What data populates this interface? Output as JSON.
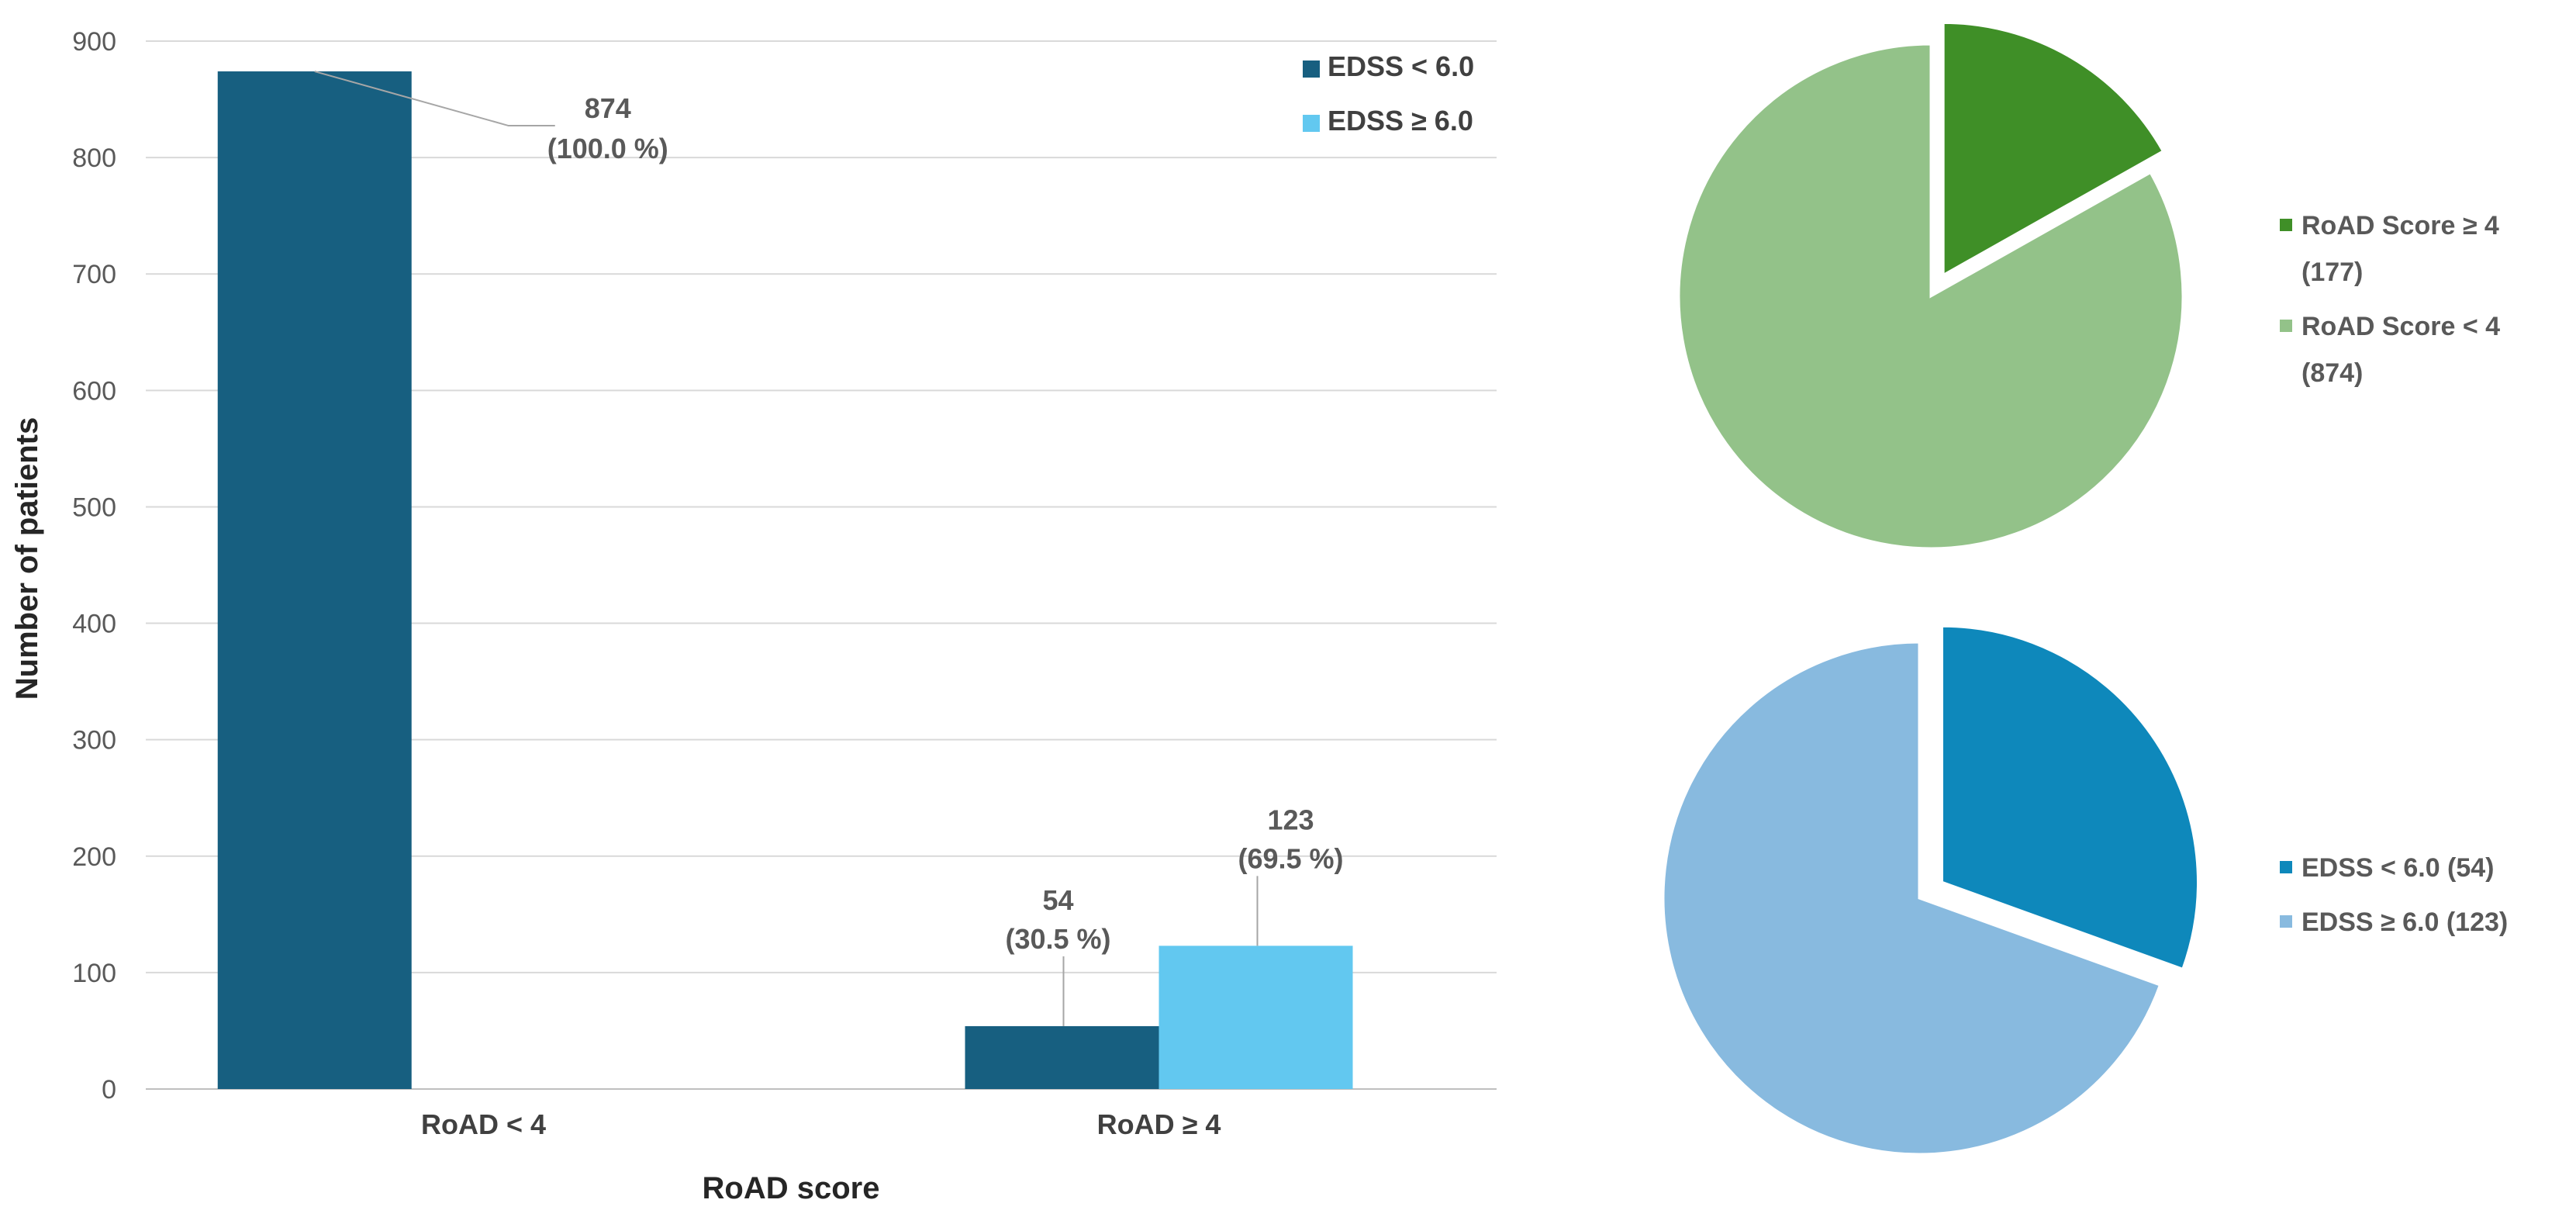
{
  "chart_data": [
    {
      "type": "bar",
      "title": "",
      "xlabel": "RoAD score",
      "ylabel": "Number of patients",
      "ylim": [
        0,
        900
      ],
      "yticks": [
        0,
        100,
        200,
        300,
        400,
        500,
        600,
        700,
        800,
        900
      ],
      "grid": true,
      "legend_position": "top-right",
      "categories": [
        "RoAD < 4",
        "RoAD ≥ 4"
      ],
      "series": [
        {
          "name": "EDSS < 6.0",
          "color": "#175f80",
          "values": [
            874,
            54
          ],
          "labels": [
            [
              "874",
              "(100.0 %)"
            ],
            [
              "54",
              "(30.5 %)"
            ]
          ]
        },
        {
          "name": "EDSS ≥ 6.0",
          "color": "#62c8f0",
          "values": [
            null,
            123
          ],
          "labels": [
            null,
            [
              "123",
              "(69.5 %)"
            ]
          ]
        }
      ]
    },
    {
      "type": "pie",
      "legend_position": "right",
      "slices": [
        {
          "name": "RoAD Score ≥ 4",
          "value_label": "(177)",
          "value": 177,
          "color": "#3f8f27",
          "exploded": true
        },
        {
          "name": "RoAD Score < 4",
          "value_label": "(874)",
          "value": 874,
          "color": "#93c289",
          "exploded": false
        }
      ]
    },
    {
      "type": "pie",
      "legend_position": "right",
      "slices": [
        {
          "name": "EDSS < 6.0 (54)",
          "value": 54,
          "color": "#0e88bb",
          "exploded": true
        },
        {
          "name": "EDSS ≥ 6.0 (123)",
          "value": 123,
          "color": "#88badf",
          "exploded": false
        }
      ]
    }
  ]
}
